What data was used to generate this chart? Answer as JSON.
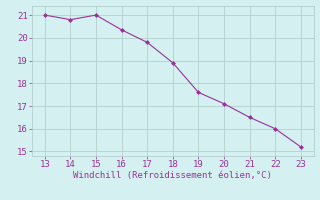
{
  "x": [
    13,
    14,
    15,
    16,
    17,
    18,
    19,
    20,
    21,
    22,
    23
  ],
  "y": [
    21.0,
    20.8,
    21.0,
    20.35,
    19.8,
    18.9,
    17.6,
    17.1,
    16.5,
    16.0,
    15.2
  ],
  "line_color": "#993399",
  "marker": "D",
  "marker_size": 2.0,
  "bg_color": "#d4f0f0",
  "grid_color": "#b0c8c8",
  "xlabel": "Windchill (Refroidissement éolien,°C)",
  "xlabel_color": "#993399",
  "tick_color": "#993399",
  "xlim": [
    12.5,
    23.5
  ],
  "ylim": [
    14.8,
    21.4
  ],
  "xticks": [
    13,
    14,
    15,
    16,
    17,
    18,
    19,
    20,
    21,
    22,
    23
  ],
  "yticks": [
    15,
    16,
    17,
    18,
    19,
    20,
    21
  ],
  "tick_fontsize": 6.5,
  "xlabel_fontsize": 6.5
}
